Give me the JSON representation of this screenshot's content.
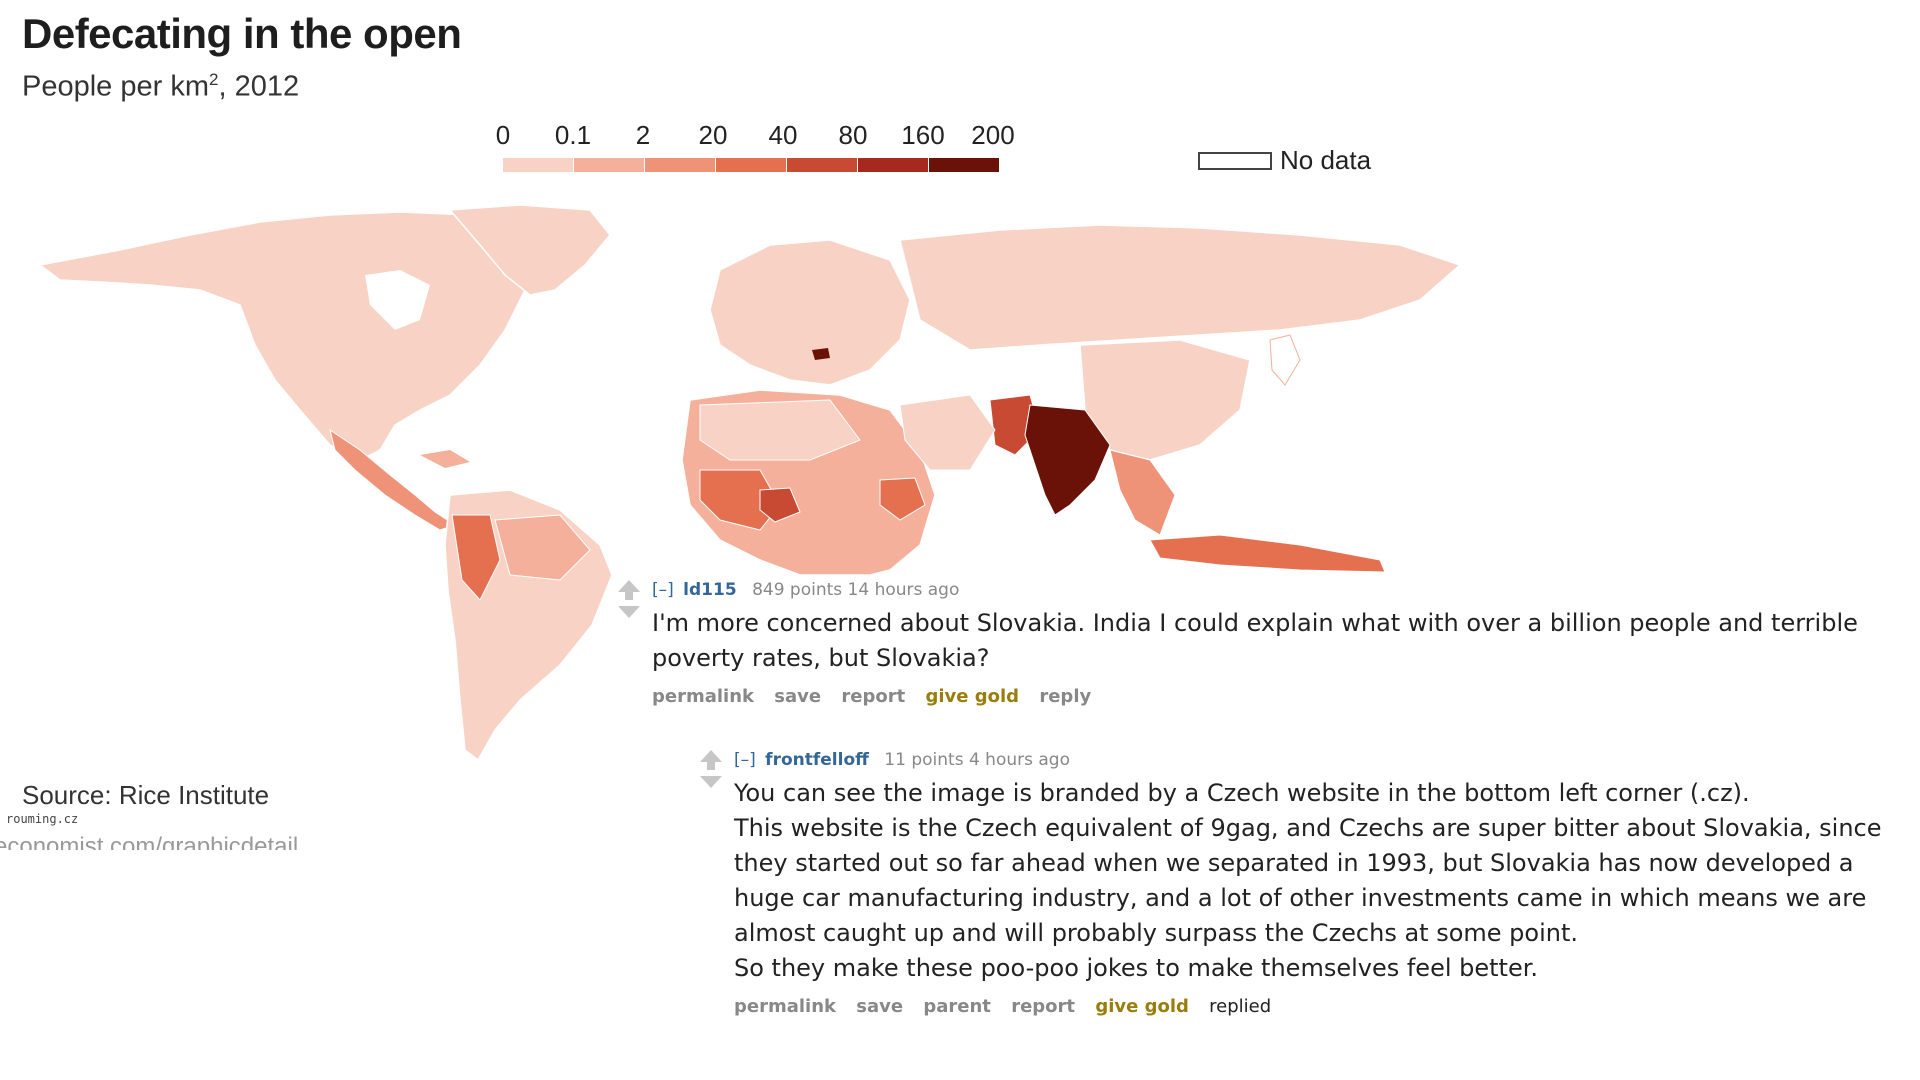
{
  "chart": {
    "title": "Defecating in the open",
    "subtitle_prefix": "People per km",
    "subtitle_sup": "2",
    "subtitle_suffix": ", 2012",
    "legend_ticks": [
      "0",
      "0.1",
      "2",
      "20",
      "40",
      "80",
      "160",
      "200"
    ],
    "legend_colors": [
      "#f8d2c4",
      "#f4b09a",
      "#ee9377",
      "#e4704f",
      "#c94a32",
      "#a52a1d",
      "#6b1208"
    ],
    "no_data_label": "No data",
    "source": "Source: Rice Institute",
    "watermark": "rouming.cz",
    "url": "economist.com/graphicdetail"
  },
  "comments": [
    {
      "collapse": "[–]",
      "author": "ld115",
      "meta": "849 points 14 hours ago",
      "text": "I'm more concerned about Slovakia. India I could explain what with over a billion people and terrible poverty rates, but Slovakia?",
      "buttons": [
        "permalink",
        "save",
        "report",
        "give gold",
        "reply"
      ]
    },
    {
      "collapse": "[–]",
      "author": "frontfelloff",
      "meta": "11 points 4 hours ago",
      "text_lines": [
        "You can see the image is branded by a Czech website in the bottom left corner (.cz).",
        "This website is the Czech equivalent of 9gag, and Czechs are super bitter about Slovakia, since",
        "they started out so far ahead when we separated in 1993, but Slovakia has now developed a",
        "huge car manufacturing industry, and a lot of other investments came in which means we are",
        "almost caught up and will probably surpass the Czechs at some point.",
        "So they make these poo-poo jokes to make themselves feel better."
      ],
      "buttons": [
        "permalink",
        "save",
        "parent",
        "report",
        "give gold",
        "replied"
      ]
    }
  ]
}
